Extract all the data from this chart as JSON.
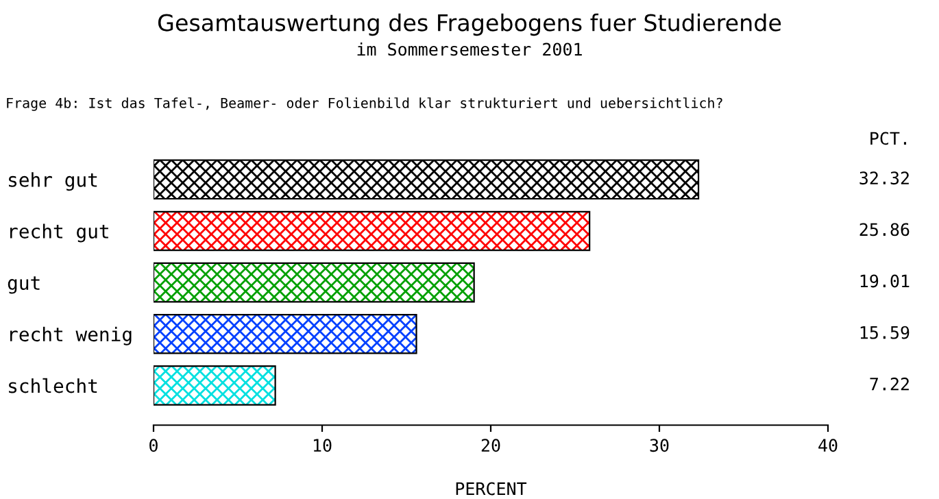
{
  "chart_data": {
    "type": "bar",
    "orientation": "horizontal",
    "title": "Gesamtauswertung des Fragebogens fuer Studierende",
    "subtitle": "im Sommersemester 2001",
    "annotations": [
      "Frage 4b: Ist das Tafel-, Beamer- oder Folienbild klar strukturiert und uebersichtlich?",
      "PCT."
    ],
    "categories": [
      "sehr gut",
      "recht gut",
      "gut",
      "recht wenig",
      "schlecht"
    ],
    "values": [
      32.32,
      25.86,
      19.01,
      15.59,
      7.22
    ],
    "colors": [
      "#000000",
      "#ff0000",
      "#00a000",
      "#0040ff",
      "#00e0e0"
    ],
    "xlabel": "PERCENT",
    "xlim": [
      0,
      40
    ],
    "xticks": [
      0,
      10,
      20,
      30,
      40
    ],
    "data_labels": true,
    "grid": false
  }
}
